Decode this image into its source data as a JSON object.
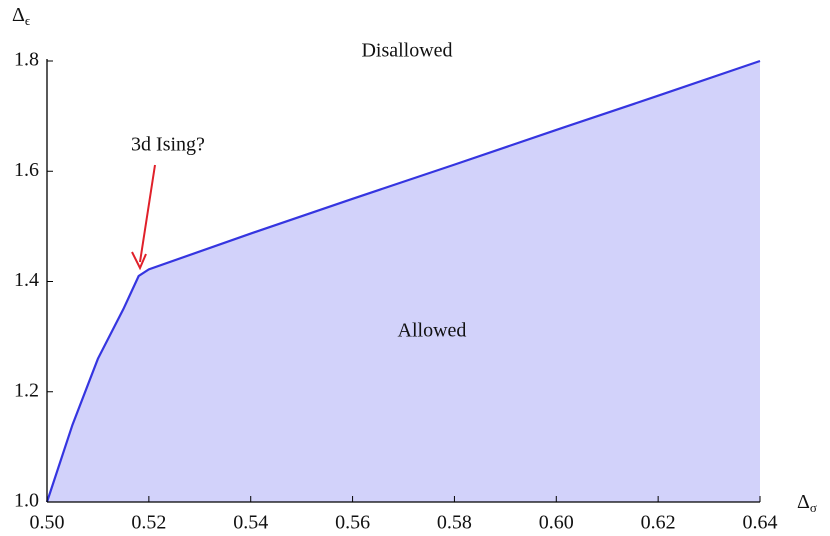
{
  "chart_data": {
    "type": "area",
    "x_label": {
      "base": "Δ",
      "sub": "σ"
    },
    "y_label": {
      "base": "Δ",
      "sub": "ϵ"
    },
    "annotations": [
      "Disallowed",
      "Allowed",
      "3d Ising?"
    ],
    "x": [
      0.5,
      0.505,
      0.51,
      0.515,
      0.518,
      0.52,
      0.54,
      0.56,
      0.58,
      0.6,
      0.62,
      0.64
    ],
    "series": [
      {
        "name": "Allowed",
        "color": "#3535e0",
        "fill": "#d2d2fa",
        "values": [
          1.0,
          1.14,
          1.26,
          1.35,
          1.41,
          1.422,
          1.487,
          1.55,
          1.612,
          1.675,
          1.737,
          1.8
        ]
      }
    ],
    "xlim": [
      0.5,
      0.64
    ],
    "ylim": [
      1.0,
      1.8
    ],
    "xticks": [
      {
        "value": 0.5,
        "label": "0.50"
      },
      0.52,
      0.54,
      0.56,
      0.58,
      {
        "value": 0.6,
        "label": "0.60"
      },
      0.62,
      0.64
    ],
    "yticks": [
      {
        "value": 1.0,
        "label": "1.0"
      },
      1.2,
      1.4,
      1.6,
      1.8
    ],
    "arrow_color": "#e0202a"
  }
}
